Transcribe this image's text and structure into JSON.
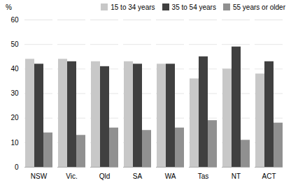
{
  "chart_data": {
    "type": "bar",
    "categories": [
      "NSW",
      "Vic.",
      "Qld",
      "SA",
      "WA",
      "Tas",
      "NT",
      "ACT"
    ],
    "series": [
      {
        "name": "15 to 34 years",
        "color": "#c8c8c8",
        "values": [
          44,
          44,
          43,
          43,
          42,
          36,
          40,
          38
        ]
      },
      {
        "name": "35 to 54 years",
        "color": "#404040",
        "values": [
          42,
          43,
          41,
          42,
          42,
          45,
          49,
          43
        ]
      },
      {
        "name": "55 years or older",
        "color": "#909090",
        "values": [
          14,
          13,
          16,
          15,
          16,
          19,
          11,
          18
        ]
      }
    ],
    "ylabel": "%",
    "ylim": [
      0,
      60
    ],
    "yticks": [
      0,
      10,
      20,
      30,
      40,
      50,
      60
    ],
    "grid": true,
    "legend": "upper right"
  }
}
